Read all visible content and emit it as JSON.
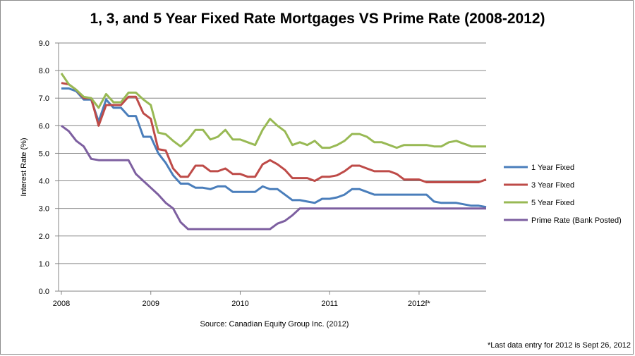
{
  "chart_data": {
    "type": "line",
    "title": "1, 3, and 5 Year Fixed Rate Mortgages VS Prime Rate (2008-2012)",
    "xlabel": "",
    "ylabel": "Interest Rate (%)",
    "ylim": [
      0,
      9
    ],
    "yticks": [
      "0.0",
      "1.0",
      "2.0",
      "3.0",
      "4.0",
      "5.0",
      "6.0",
      "7.0",
      "8.0",
      "9.0"
    ],
    "xticks": [
      {
        "label": "2008",
        "index": 0
      },
      {
        "label": "2009",
        "index": 12
      },
      {
        "label": "2010",
        "index": 24
      },
      {
        "label": "2011",
        "index": 36
      },
      {
        "label": "2012f*",
        "index": 48
      }
    ],
    "n_points": 58,
    "grid": "horizontal",
    "legend_position": "right",
    "series": [
      {
        "name": "1 Year Fixed",
        "color": "#4a7ebb",
        "values": [
          7.35,
          7.35,
          7.25,
          6.95,
          6.95,
          6.15,
          6.95,
          6.65,
          6.65,
          6.35,
          6.35,
          5.6,
          5.6,
          5.0,
          4.65,
          4.2,
          3.9,
          3.9,
          3.75,
          3.75,
          3.7,
          3.8,
          3.8,
          3.6,
          3.6,
          3.6,
          3.6,
          3.8,
          3.7,
          3.7,
          3.5,
          3.3,
          3.3,
          3.25,
          3.2,
          3.35,
          3.35,
          3.4,
          3.5,
          3.7,
          3.7,
          3.6,
          3.5,
          3.5,
          3.5,
          3.5,
          3.5,
          3.5,
          3.5,
          3.5,
          3.25,
          3.2,
          3.2,
          3.2,
          3.15,
          3.1,
          3.1,
          3.05
        ]
      },
      {
        "name": "3 Year Fixed",
        "color": "#be4b48",
        "values": [
          7.55,
          7.5,
          7.3,
          7.0,
          7.0,
          6.0,
          6.75,
          6.75,
          6.75,
          7.05,
          7.05,
          6.45,
          6.25,
          5.15,
          5.1,
          4.45,
          4.15,
          4.15,
          4.55,
          4.55,
          4.35,
          4.35,
          4.45,
          4.25,
          4.25,
          4.15,
          4.15,
          4.6,
          4.75,
          4.6,
          4.4,
          4.1,
          4.1,
          4.1,
          4.0,
          4.15,
          4.15,
          4.2,
          4.35,
          4.55,
          4.55,
          4.45,
          4.35,
          4.35,
          4.35,
          4.25,
          4.05,
          4.05,
          4.05,
          3.95,
          3.95,
          3.95,
          3.95,
          3.95,
          3.95,
          3.95,
          3.95,
          4.05
        ]
      },
      {
        "name": "5 Year Fixed",
        "color": "#98b954",
        "values": [
          7.9,
          7.5,
          7.3,
          7.05,
          7.0,
          6.65,
          7.15,
          6.85,
          6.85,
          7.2,
          7.2,
          6.95,
          6.75,
          5.75,
          5.69,
          5.45,
          5.25,
          5.5,
          5.85,
          5.85,
          5.5,
          5.6,
          5.85,
          5.5,
          5.5,
          5.4,
          5.3,
          5.85,
          6.25,
          6.0,
          5.8,
          5.3,
          5.4,
          5.3,
          5.45,
          5.2,
          5.2,
          5.3,
          5.45,
          5.7,
          5.7,
          5.6,
          5.4,
          5.4,
          5.3,
          5.2,
          5.3,
          5.3,
          5.3,
          5.3,
          5.25,
          5.25,
          5.4,
          5.45,
          5.35,
          5.25,
          5.25,
          5.25
        ]
      },
      {
        "name": "Prime Rate (Bank Posted)",
        "color": "#7d5fa0",
        "values": [
          6.0,
          5.8,
          5.45,
          5.25,
          4.8,
          4.75,
          4.75,
          4.75,
          4.75,
          4.75,
          4.25,
          4.0,
          3.75,
          3.5,
          3.2,
          3.0,
          2.5,
          2.25,
          2.25,
          2.25,
          2.25,
          2.25,
          2.25,
          2.25,
          2.25,
          2.25,
          2.25,
          2.25,
          2.25,
          2.45,
          2.55,
          2.75,
          3.0,
          3.0,
          3.0,
          3.0,
          3.0,
          3.0,
          3.0,
          3.0,
          3.0,
          3.0,
          3.0,
          3.0,
          3.0,
          3.0,
          3.0,
          3.0,
          3.0,
          3.0,
          3.0,
          3.0,
          3.0,
          3.0,
          3.0,
          3.0,
          3.0,
          3.0
        ]
      }
    ],
    "annotations": [
      "Source: Canadian Equity Group Inc. (2012)",
      "*Last data entry for 2012 is Sept 26, 2012"
    ]
  }
}
